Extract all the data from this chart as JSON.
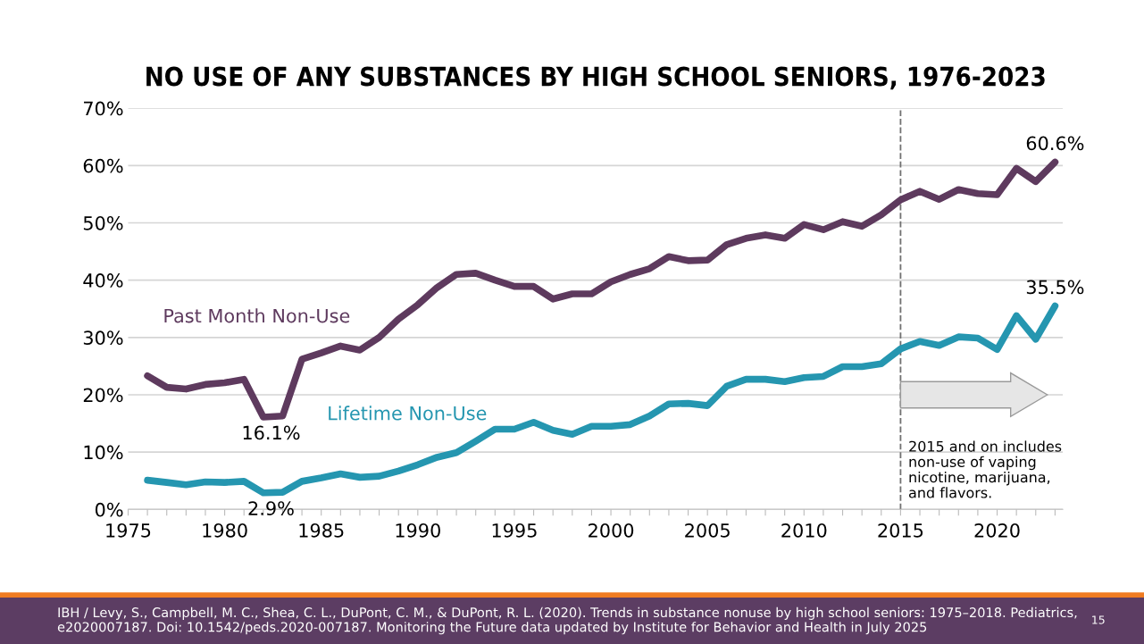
{
  "chart_data": {
    "type": "line",
    "title": "NO USE OF ANY SUBSTANCES BY HIGH SCHOOL SENIORS, 1976-2023",
    "x": [
      1976,
      1977,
      1978,
      1979,
      1980,
      1981,
      1982,
      1983,
      1984,
      1985,
      1986,
      1987,
      1988,
      1989,
      1990,
      1991,
      1992,
      1993,
      1994,
      1995,
      1996,
      1997,
      1998,
      1999,
      2000,
      2001,
      2002,
      2003,
      2004,
      2005,
      2006,
      2007,
      2008,
      2009,
      2010,
      2011,
      2012,
      2013,
      2014,
      2015,
      2016,
      2017,
      2018,
      2019,
      2020,
      2021,
      2022,
      2023
    ],
    "series": [
      {
        "name": "Past Month Non-Use",
        "color": "#5e3a5e",
        "values": [
          23.3,
          21.3,
          21.0,
          21.8,
          22.1,
          22.7,
          16.1,
          16.3,
          26.2,
          27.3,
          28.5,
          27.8,
          30.0,
          33.2,
          35.7,
          38.7,
          41.0,
          41.2,
          40.0,
          38.9,
          38.9,
          36.7,
          37.6,
          37.6,
          39.7,
          41.0,
          42.0,
          44.1,
          43.4,
          43.5,
          46.2,
          47.3,
          47.9,
          47.3,
          49.7,
          48.8,
          50.2,
          49.4,
          51.4,
          54.0,
          55.5,
          54.1,
          55.8,
          55.1,
          54.9,
          59.5,
          57.2,
          60.6
        ]
      },
      {
        "name": "Lifetime Non-Use",
        "color": "#2596b0",
        "values": [
          5.1,
          4.7,
          4.3,
          4.8,
          4.7,
          4.9,
          2.9,
          3.0,
          4.9,
          5.5,
          6.2,
          5.6,
          5.8,
          6.7,
          7.8,
          9.1,
          9.9,
          11.9,
          14.0,
          14.0,
          15.2,
          13.8,
          13.1,
          14.5,
          14.5,
          14.8,
          16.3,
          18.4,
          18.5,
          18.1,
          21.5,
          22.7,
          22.7,
          22.3,
          23.0,
          23.2,
          24.9,
          24.9,
          25.4,
          28.0,
          29.3,
          28.6,
          30.1,
          29.9,
          27.9,
          33.8,
          29.7,
          35.5
        ]
      }
    ],
    "xlim": [
      1975,
      2023.4
    ],
    "xticks": [
      1975,
      {
        "value": 1976,
        "label": null
      },
      {
        "value": 1977,
        "label": null
      },
      {
        "value": 1978,
        "label": null
      },
      {
        "value": 1979,
        "label": null
      },
      1980,
      {
        "value": 1981,
        "label": null
      },
      {
        "value": 1982,
        "label": null
      },
      {
        "value": 1983,
        "label": null
      },
      {
        "value": 1984,
        "label": null
      },
      1985,
      {
        "value": 1986,
        "label": null
      },
      {
        "value": 1987,
        "label": null
      },
      {
        "value": 1988,
        "label": null
      },
      {
        "value": 1989,
        "label": null
      },
      1990,
      {
        "value": 1991,
        "label": null
      },
      {
        "value": 1992,
        "label": null
      },
      {
        "value": 1993,
        "label": null
      },
      {
        "value": 1994,
        "label": null
      },
      1995,
      {
        "value": 1996,
        "label": null
      },
      {
        "value": 1997,
        "label": null
      },
      {
        "value": 1998,
        "label": null
      },
      {
        "value": 1999,
        "label": null
      },
      2000,
      {
        "value": 2001,
        "label": null
      },
      {
        "value": 2002,
        "label": null
      },
      {
        "value": 2003,
        "label": null
      },
      {
        "value": 2004,
        "label": null
      },
      2005,
      {
        "value": 2006,
        "label": null
      },
      {
        "value": 2007,
        "label": null
      },
      {
        "value": 2008,
        "label": null
      },
      {
        "value": 2009,
        "label": null
      },
      2010,
      {
        "value": 2011,
        "label": null
      },
      {
        "value": 2012,
        "label": null
      },
      {
        "value": 2013,
        "label": null
      },
      {
        "value": 2014,
        "label": null
      },
      2015,
      {
        "value": 2016,
        "label": null
      },
      {
        "value": 2017,
        "label": null
      },
      {
        "value": 2018,
        "label": null
      },
      {
        "value": 2019,
        "label": null
      },
      2020,
      {
        "value": 2021,
        "label": null
      },
      {
        "value": 2022,
        "label": null
      },
      {
        "value": 2023,
        "label": null
      }
    ],
    "ylim": [
      0,
      70
    ],
    "yticks": [
      {
        "value": 0,
        "label": "0%"
      },
      {
        "value": 10,
        "label": "10%"
      },
      {
        "value": 20,
        "label": "20%"
      },
      {
        "value": 30,
        "label": "30%"
      },
      {
        "value": 40,
        "label": "40%"
      },
      {
        "value": 50,
        "label": "50%"
      },
      {
        "value": 60,
        "label": "60%"
      },
      {
        "value": 70,
        "label": "70%"
      }
    ],
    "grid": "y",
    "line_style": "solid",
    "ref_lines": [
      {
        "axis": "x",
        "value": 2015,
        "color": "#707070",
        "line_style": "dashed"
      }
    ],
    "annotations": [
      {
        "text": "16.1%",
        "x": 1982,
        "y": 16.1
      },
      {
        "text": "2.9%",
        "x": 1982,
        "y": 2.9
      },
      {
        "text": "60.6%",
        "x": 2023,
        "y": 60.6
      },
      {
        "text": "35.5%",
        "x": 2023,
        "y": 35.5
      },
      {
        "text": "2015 and on includes\nnon-use of vaping\nnicotine, marijuana,\nand flavors.",
        "x": 2015,
        "y": 1.5
      },
      "IBH / Levy, S., Campbell, M. C., Shea, C. L., DuPont, C. M., & DuPont, R. L. (2020). Trends in substance nonuse by high school seniors: 1975–2018. Pediatrics, e2020007187. Doi: 10.1542/peds.2020-007187. Monitoring the Future data updated by Institute for Behavior and Health in July 2025",
      "15"
    ]
  }
}
